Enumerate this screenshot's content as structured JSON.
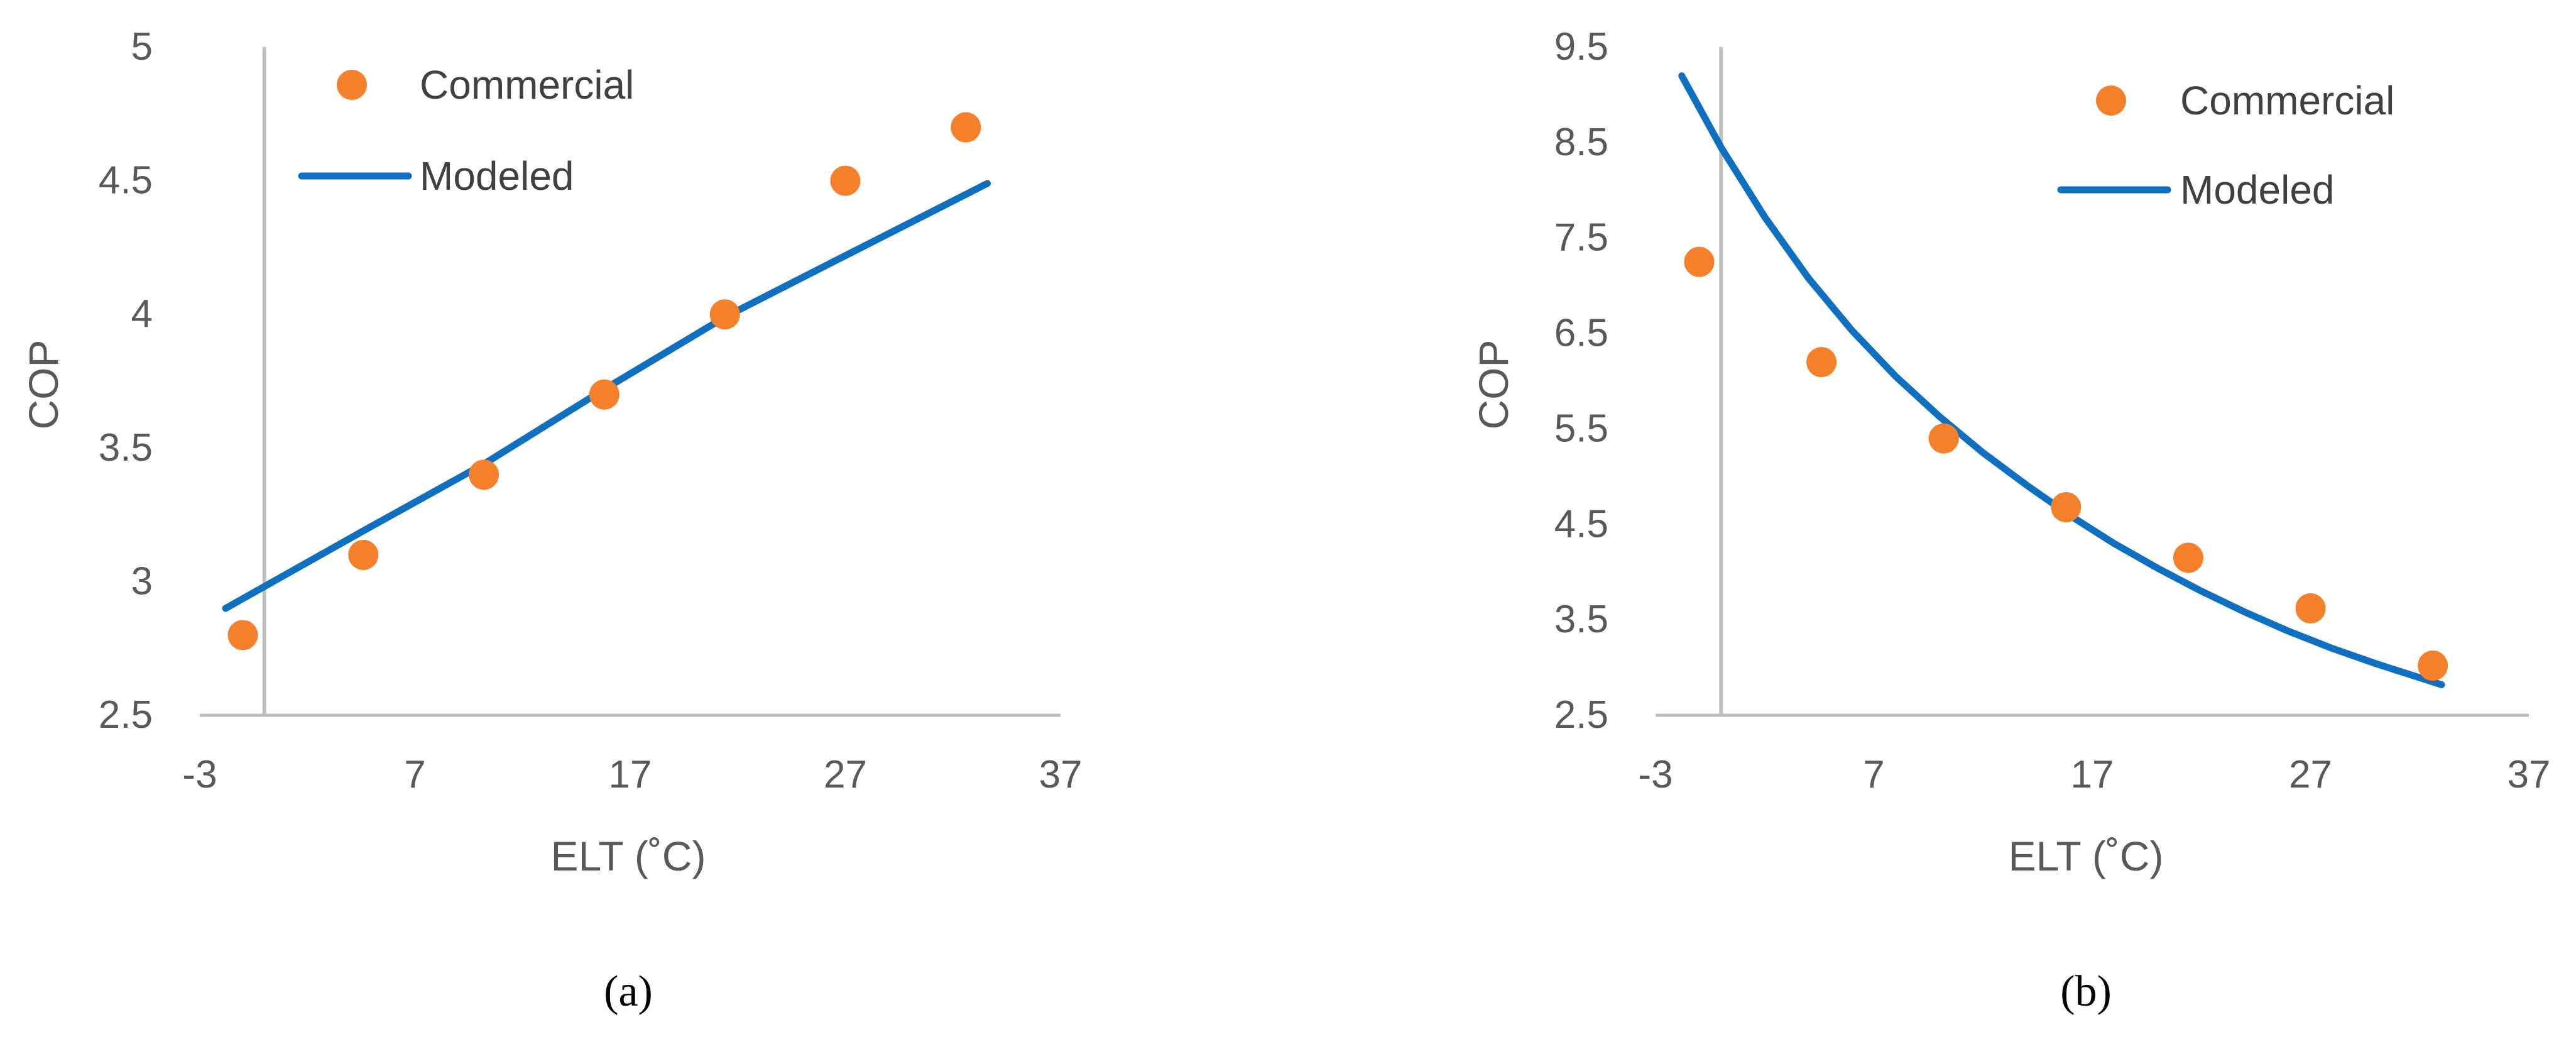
{
  "colors": {
    "commercial": "#F4802B",
    "modeled": "#0F6FC0",
    "axis": "#BFBFBF",
    "text": "#595959"
  },
  "chart_data": [
    {
      "type": "scatter",
      "panel_label": "(a)",
      "xlabel": "ELT (˚C)",
      "ylabel": "COP",
      "xlim": [
        -3,
        37
      ],
      "ylim": [
        2.5,
        5
      ],
      "xticks": [
        "-3",
        "7",
        "17",
        "27",
        "37"
      ],
      "yticks": [
        "2.5",
        "3",
        "3.5",
        "4",
        "4.5",
        "5"
      ],
      "x_axis_crosses_at": 0,
      "legend_position": "top-left",
      "series": [
        {
          "name": "Commercial",
          "kind": "points",
          "x": [
            -1,
            4.6,
            10.2,
            15.8,
            21.4,
            27,
            32.6
          ],
          "y": [
            2.8,
            3.1,
            3.4,
            3.7,
            4.0,
            4.5,
            4.7
          ]
        },
        {
          "name": "Modeled",
          "kind": "line",
          "x": [
            -1.8,
            4.6,
            10.2,
            15.8,
            21.4,
            27,
            33.6
          ],
          "y": [
            2.9,
            3.19,
            3.44,
            3.72,
            3.99,
            4.22,
            4.49
          ]
        }
      ]
    },
    {
      "type": "scatter",
      "panel_label": "(b)",
      "xlabel": "ELT (˚C)",
      "ylabel": "COP",
      "xlim": [
        -3,
        37
      ],
      "ylim": [
        2.5,
        9.5
      ],
      "xticks": [
        "-3",
        "7",
        "17",
        "27",
        "37"
      ],
      "yticks": [
        "2.5",
        "3.5",
        "4.5",
        "5.5",
        "6.5",
        "7.5",
        "8.5",
        "9.5"
      ],
      "x_axis_crosses_at": 0,
      "legend_position": "top-right",
      "series": [
        {
          "name": "Commercial",
          "kind": "points",
          "x": [
            -1,
            4.6,
            10.2,
            15.8,
            21.4,
            27,
            32.6
          ],
          "y": [
            7.25,
            6.2,
            5.4,
            4.68,
            4.15,
            3.62,
            3.02
          ]
        },
        {
          "name": "Modeled",
          "kind": "line",
          "x": [
            -1.8,
            0,
            2,
            4,
            6,
            8,
            10,
            12,
            14,
            16,
            18,
            20,
            22,
            24,
            26,
            28,
            30,
            33
          ],
          "y": [
            9.2,
            8.45,
            7.72,
            7.08,
            6.53,
            6.05,
            5.63,
            5.25,
            4.91,
            4.59,
            4.3,
            4.04,
            3.8,
            3.58,
            3.38,
            3.2,
            3.04,
            2.82
          ]
        }
      ]
    }
  ]
}
